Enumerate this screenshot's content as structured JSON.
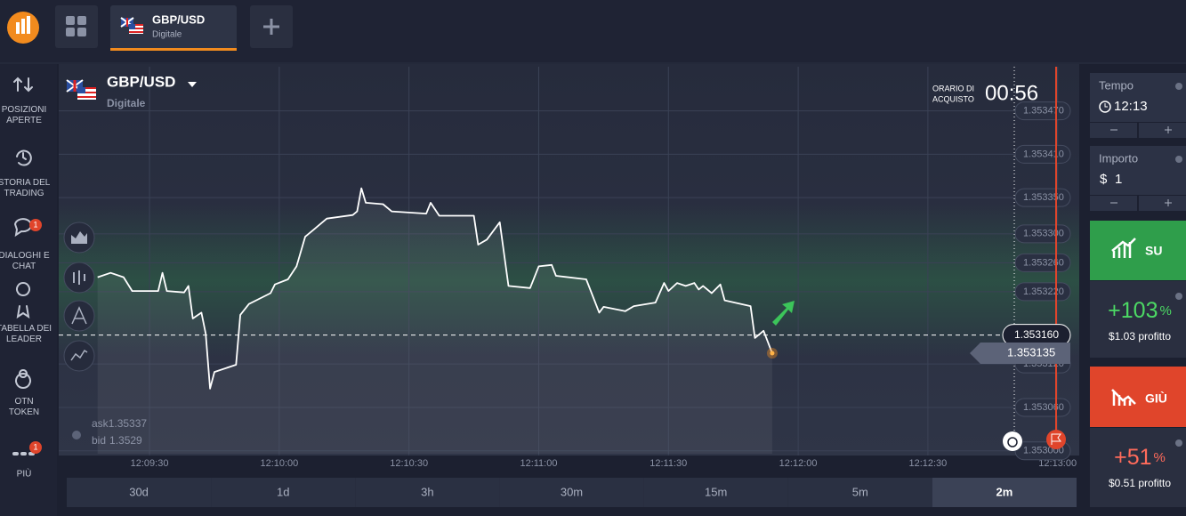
{
  "top_bar": {
    "tab": {
      "pair": "GBP/USD",
      "type": "Digitale"
    }
  },
  "sidebar": [
    {
      "label": "POSIZIONI APERTE"
    },
    {
      "label": "STORIA DEL TRADING"
    },
    {
      "label": "DIALOGHI E CHAT",
      "badge": 1
    },
    {
      "label": "TABELLA DEI LEADER"
    },
    {
      "label": "OTN TOKEN"
    },
    {
      "label": "PIÙ",
      "badge": 1
    }
  ],
  "chart_header": {
    "pair": "GBP/USD",
    "type": "Digitale",
    "purchase_label": [
      "ORARIO DI",
      "ACQUISTO"
    ],
    "countdown": "00:56"
  },
  "quote": {
    "ask_label": "ask",
    "ask": 1.35337,
    "bid_label": "bid",
    "bid": 1.3529
  },
  "timeframes": [
    "30d",
    "1d",
    "3h",
    "30m",
    "15m",
    "5m",
    "2m"
  ],
  "active_timeframe": "2m",
  "right_panel": {
    "time": {
      "label": "Tempo",
      "value": "12:13"
    },
    "amount": {
      "label": "Importo",
      "currency": "$",
      "value": 1
    },
    "up": {
      "label": "SU",
      "payout": "+103",
      "unit": "%",
      "profit": "$1.03 profitto"
    },
    "down": {
      "label": "GIÙ",
      "payout": "+51",
      "unit": "%",
      "profit": "$0.51 profitto"
    }
  },
  "chart_data": {
    "type": "line",
    "color": "#ffffff",
    "x": [
      "12:09:18",
      "12:09:21",
      "12:09:24",
      "12:09:26",
      "12:09:32",
      "12:09:33",
      "12:09:34",
      "12:09:38",
      "12:09:39",
      "12:09:40",
      "12:09:42",
      "12:09:43",
      "12:09:44",
      "12:09:45",
      "12:09:49",
      "12:09:50",
      "12:09:51",
      "12:09:53",
      "12:09:58",
      "12:09:59",
      "12:10:02",
      "12:10:04",
      "12:10:06",
      "12:10:08",
      "12:10:11",
      "12:10:17",
      "12:10:18",
      "12:10:19",
      "12:10:20",
      "12:10:24",
      "12:10:26",
      "12:10:34",
      "12:10:35",
      "12:10:37",
      "12:10:45",
      "12:10:46",
      "12:10:48",
      "12:10:51",
      "12:10:53",
      "12:10:58",
      "12:11:00",
      "12:11:03",
      "12:11:04",
      "12:11:11",
      "12:11:14",
      "12:11:15",
      "12:11:20",
      "12:11:22",
      "12:11:27",
      "12:11:29",
      "12:11:30",
      "12:11:32",
      "12:11:34",
      "12:11:36",
      "12:11:37",
      "12:11:38",
      "12:11:40",
      "12:11:42",
      "12:11:43",
      "12:11:49",
      "12:11:50",
      "12:11:52",
      "12:11:54"
    ],
    "values": [
      1.35324,
      1.353246,
      1.35324,
      1.353221,
      1.353221,
      1.353246,
      1.353221,
      1.353219,
      1.353228,
      1.353183,
      1.353191,
      1.353162,
      1.353086,
      1.353109,
      1.353117,
      1.353119,
      1.353188,
      1.353203,
      1.353218,
      1.35323,
      1.353237,
      1.353255,
      1.353296,
      1.353306,
      1.353321,
      1.353326,
      1.353331,
      1.353363,
      1.353343,
      1.353341,
      1.353331,
      1.353328,
      1.353343,
      1.353325,
      1.353325,
      1.353285,
      1.353292,
      1.353316,
      1.353228,
      1.353225,
      1.353255,
      1.353257,
      1.353242,
      1.353237,
      1.353191,
      1.353199,
      1.353193,
      1.3532,
      1.353205,
      1.353232,
      1.353221,
      1.353232,
      1.353228,
      1.353232,
      1.353223,
      1.353228,
      1.353218,
      1.35323,
      1.353208,
      1.3532,
      1.353156,
      1.353166,
      1.353135
    ],
    "xlim": [
      "12:09:09",
      "12:13:05"
    ],
    "xticks": [
      "12:09:30",
      "12:10:00",
      "12:10:30",
      "12:11:00",
      "12:11:30",
      "12:12:00",
      "12:12:30",
      "12:13:00"
    ],
    "ylim": [
      1.352996,
      1.353531
    ],
    "yticks": [
      {
        "value": 1.35347,
        "label": "1.353470"
      },
      {
        "value": 1.35341,
        "label": "1.353410"
      },
      {
        "value": 1.35335,
        "label": "1.353350"
      },
      {
        "value": 1.3533,
        "label": "1.353300"
      },
      {
        "value": 1.35326,
        "label": "1.353260"
      },
      {
        "value": 1.35322,
        "label": "1.353220"
      },
      {
        "value": 1.35312,
        "label": "1.353120"
      },
      {
        "value": 1.35306,
        "label": "1.353060"
      },
      {
        "value": 1.353,
        "label": "1.353000"
      }
    ],
    "grid": true,
    "current_price": {
      "value": 1.35316,
      "label": "1.353160"
    },
    "last_price": {
      "value": 1.353135,
      "label": "1.353135"
    }
  }
}
